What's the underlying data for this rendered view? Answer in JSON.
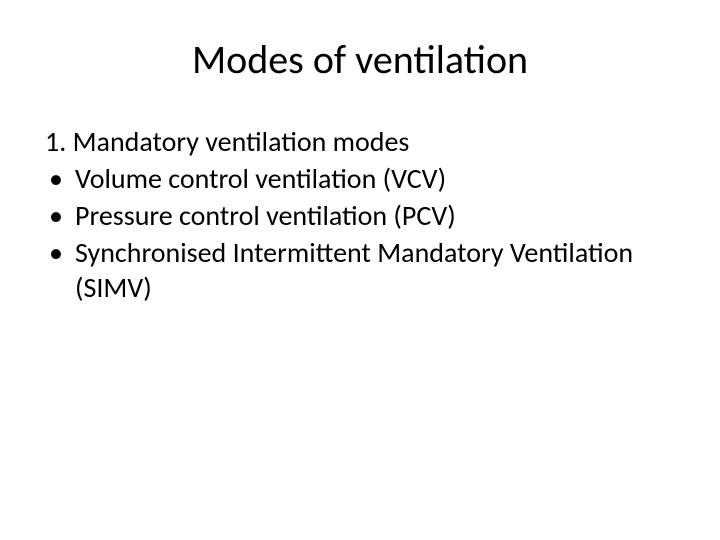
{
  "slide": {
    "title": "Modes of ventilation",
    "heading": "1. Mandatory ventilation modes",
    "bullets": [
      "Volume control ventilation (VCV)",
      "Pressure control ventilation (PCV)",
      "Synchronised Intermittent Mandatory Ventilation (SIMV)"
    ],
    "style": {
      "background_color": "#ffffff",
      "text_color": "#000000",
      "title_fontsize": 40,
      "body_fontsize": 28,
      "font_family": "Calibri",
      "bullet_char": "•"
    }
  }
}
